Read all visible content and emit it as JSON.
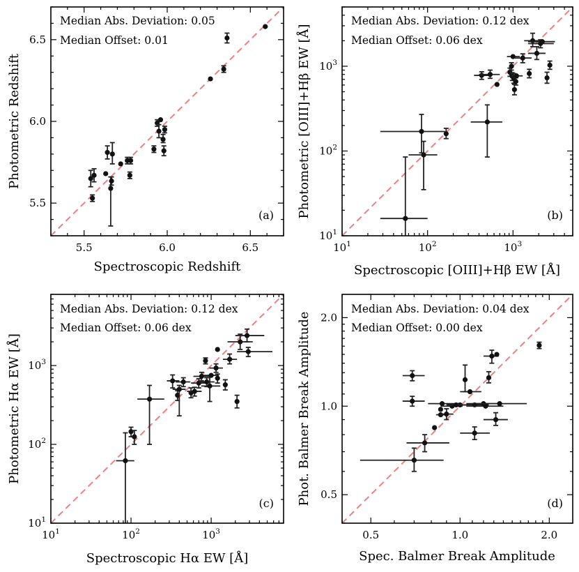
{
  "chart_data": [
    {
      "type": "scatter",
      "panel_label": "(a)",
      "xlabel": "Spectroscopic Redshift",
      "ylabel": "Photometric Redshift",
      "xscale": "linear",
      "yscale": "linear",
      "xlim": [
        5.3,
        6.7
      ],
      "ylim": [
        5.3,
        6.7
      ],
      "xticks": [
        5.5,
        6.0,
        6.5
      ],
      "xtick_labels": [
        "5.5",
        "6.0",
        "6.5"
      ],
      "yticks": [
        5.5,
        6.0,
        6.5
      ],
      "ytick_labels": [
        "5.5",
        "6.0",
        "6.5"
      ],
      "minor_ticks": [
        5.3,
        5.4,
        5.6,
        5.7,
        5.8,
        5.9,
        6.1,
        6.2,
        6.3,
        6.4,
        6.6,
        6.7
      ],
      "stats": [
        "Median Abs. Deviation: 0.05",
        "Median Offset: 0.01"
      ],
      "reference_line": "one-to-one dashed",
      "points": [
        {
          "x": 5.54,
          "y": 5.65,
          "ylo": 5.6,
          "yhi": 5.7
        },
        {
          "x": 5.55,
          "y": 5.53,
          "ylo": 5.51,
          "yhi": 5.55
        },
        {
          "x": 5.56,
          "y": 5.67,
          "ylo": 5.63,
          "yhi": 5.71
        },
        {
          "x": 5.63,
          "y": 5.68
        },
        {
          "x": 5.64,
          "y": 5.81,
          "ylo": 5.77,
          "yhi": 5.85
        },
        {
          "x": 5.66,
          "y": 5.59,
          "ylo": 5.36,
          "yhi": 5.66
        },
        {
          "x": 5.665,
          "y": 5.635,
          "ylo": 5.61,
          "yhi": 5.66
        },
        {
          "x": 5.67,
          "y": 5.8,
          "ylo": 5.74,
          "yhi": 5.87
        },
        {
          "x": 5.72,
          "y": 5.74
        },
        {
          "x": 5.76,
          "y": 5.76,
          "ylo": 5.74,
          "yhi": 5.78
        },
        {
          "x": 5.775,
          "y": 5.67,
          "ylo": 5.65,
          "yhi": 5.69
        },
        {
          "x": 5.78,
          "y": 5.76,
          "ylo": 5.74,
          "yhi": 5.78
        },
        {
          "x": 5.92,
          "y": 5.83,
          "ylo": 5.81,
          "yhi": 5.85
        },
        {
          "x": 5.94,
          "y": 5.99,
          "ylo": 5.97,
          "yhi": 6.01
        },
        {
          "x": 5.95,
          "y": 5.94,
          "ylo": 5.9,
          "yhi": 5.98
        },
        {
          "x": 5.96,
          "y": 6.01
        },
        {
          "x": 5.975,
          "y": 5.89,
          "ylo": 5.87,
          "yhi": 5.92
        },
        {
          "x": 5.98,
          "y": 5.82,
          "ylo": 5.79,
          "yhi": 5.85
        },
        {
          "x": 5.985,
          "y": 5.95,
          "ylo": 5.93,
          "yhi": 5.97
        },
        {
          "x": 6.26,
          "y": 6.26
        },
        {
          "x": 6.34,
          "y": 6.32,
          "ylo": 6.3,
          "yhi": 6.34
        },
        {
          "x": 6.36,
          "y": 6.51,
          "ylo": 6.48,
          "yhi": 6.54
        },
        {
          "x": 6.59,
          "y": 6.58
        }
      ]
    },
    {
      "type": "scatter",
      "panel_label": "(b)",
      "xlabel": "Spectroscopic [OIII]+Hβ EW [Å]",
      "ylabel": "Photometric [OIII]+Hβ EW [Å]",
      "xscale": "log",
      "yscale": "log",
      "xlim": [
        10,
        5000
      ],
      "ylim": [
        10,
        5000
      ],
      "xticks": [
        10,
        100,
        1000
      ],
      "xtick_labels": [
        [
          "10",
          "1"
        ],
        [
          "10",
          "2"
        ],
        [
          "10",
          "3"
        ]
      ],
      "yticks": [
        10,
        100,
        1000
      ],
      "ytick_labels": [
        [
          "10",
          "1"
        ],
        [
          "10",
          "2"
        ],
        [
          "10",
          "3"
        ]
      ],
      "stats": [
        "Median Abs. Deviation: 0.12 dex",
        "Median Offset: 0.06 dex"
      ],
      "reference_line": "one-to-one dashed",
      "points": [
        {
          "x": 55,
          "y": 16,
          "xlo": 28,
          "xhi": 100,
          "ylo": 3,
          "yhi": 85
        },
        {
          "x": 85,
          "y": 170,
          "xlo": 28,
          "xhi": 160,
          "ylo": 95,
          "yhi": 270
        },
        {
          "x": 90,
          "y": 90,
          "xlo": 60,
          "xhi": 130,
          "ylo": 35,
          "yhi": 130
        },
        {
          "x": 165,
          "y": 160,
          "ylo": 140,
          "yhi": 185
        },
        {
          "x": 500,
          "y": 220,
          "xlo": 320,
          "xhi": 750,
          "ylo": 85,
          "yhi": 350
        },
        {
          "x": 430,
          "y": 780,
          "xlo": 350,
          "xhi": 540,
          "ylo": 700,
          "yhi": 860
        },
        {
          "x": 540,
          "y": 800,
          "xlo": 400,
          "xhi": 700,
          "ylo": 720,
          "yhi": 900
        },
        {
          "x": 650,
          "y": 610
        },
        {
          "x": 920,
          "y": 850,
          "ylo": 760,
          "yhi": 950
        },
        {
          "x": 960,
          "y": 1000,
          "ylo": 900,
          "yhi": 1100
        },
        {
          "x": 980,
          "y": 760,
          "ylo": 680,
          "yhi": 840
        },
        {
          "x": 1000,
          "y": 1300,
          "xlo": 850,
          "xhi": 1200
        },
        {
          "x": 1020,
          "y": 720,
          "ylo": 630,
          "yhi": 820
        },
        {
          "x": 1040,
          "y": 530,
          "ylo": 460,
          "yhi": 610
        },
        {
          "x": 1080,
          "y": 660,
          "ylo": 600,
          "yhi": 730
        },
        {
          "x": 1100,
          "y": 770,
          "xlo": 950,
          "xhi": 1300
        },
        {
          "x": 1300,
          "y": 1250,
          "xlo": 1050,
          "xhi": 1650,
          "ylo": 1100,
          "yhi": 1400
        },
        {
          "x": 1550,
          "y": 820,
          "ylo": 730,
          "yhi": 920
        },
        {
          "x": 1700,
          "y": 2000,
          "xlo": 1350,
          "xhi": 2100,
          "ylo": 1700,
          "yhi": 2450
        },
        {
          "x": 1900,
          "y": 1420,
          "xlo": 1500,
          "xhi": 2400,
          "ylo": 1200,
          "yhi": 1700
        },
        {
          "x": 2100,
          "y": 1850,
          "xlo": 1500,
          "xhi": 3000,
          "ylo": 1650,
          "yhi": 2050
        },
        {
          "x": 2200,
          "y": 1950,
          "xlo": 1500,
          "xhi": 3100
        },
        {
          "x": 2500,
          "y": 730,
          "ylo": 630,
          "yhi": 850
        },
        {
          "x": 2700,
          "y": 1030,
          "ylo": 920,
          "yhi": 1150
        }
      ]
    },
    {
      "type": "scatter",
      "panel_label": "(c)",
      "xlabel": "Spectroscopic Hα EW [Å]",
      "ylabel": "Photometric Hα EW [Å]",
      "xscale": "log",
      "yscale": "log",
      "xlim": [
        10,
        8000
      ],
      "ylim": [
        10,
        8000
      ],
      "xticks": [
        10,
        100,
        1000
      ],
      "xtick_labels": [
        [
          "10",
          "1"
        ],
        [
          "10",
          "2"
        ],
        [
          "10",
          "3"
        ]
      ],
      "yticks": [
        10,
        100,
        1000
      ],
      "ytick_labels": [
        [
          "10",
          "1"
        ],
        [
          "10",
          "2"
        ],
        [
          "10",
          "3"
        ]
      ],
      "stats": [
        "Median Abs. Deviation: 0.12 dex",
        "Median Offset: 0.06 dex"
      ],
      "reference_line": "one-to-one dashed",
      "points": [
        {
          "x": 85,
          "y": 62,
          "xlo": 65,
          "xhi": 110,
          "ylo": 8,
          "yhi": 140
        },
        {
          "x": 100,
          "y": 145,
          "ylo": 125,
          "yhi": 165
        },
        {
          "x": 110,
          "y": 125,
          "ylo": 100,
          "yhi": 150
        },
        {
          "x": 170,
          "y": 375,
          "xlo": 120,
          "xhi": 260,
          "ylo": 100,
          "yhi": 560
        },
        {
          "x": 330,
          "y": 640,
          "xlo": 280,
          "xhi": 400,
          "ylo": 520,
          "yhi": 760
        },
        {
          "x": 380,
          "y": 420,
          "ylo": 360,
          "yhi": 480
        },
        {
          "x": 400,
          "y": 500,
          "xlo": 330,
          "xhi": 480,
          "ylo": 230,
          "yhi": 560
        },
        {
          "x": 450,
          "y": 620,
          "xlo": 360,
          "xhi": 550,
          "ylo": 540,
          "yhi": 700
        },
        {
          "x": 560,
          "y": 450,
          "ylo": 390,
          "yhi": 520
        },
        {
          "x": 620,
          "y": 470,
          "xlo": 500,
          "xhi": 760,
          "ylo": 410,
          "yhi": 530
        },
        {
          "x": 700,
          "y": 600,
          "xlo": 560,
          "xhi": 880,
          "ylo": 520,
          "yhi": 680
        },
        {
          "x": 760,
          "y": 730,
          "xlo": 600,
          "xhi": 950,
          "ylo": 640,
          "yhi": 820
        },
        {
          "x": 850,
          "y": 1150,
          "ylo": 1050,
          "yhi": 1250
        },
        {
          "x": 880,
          "y": 620,
          "xlo": 700,
          "xhi": 1100,
          "ylo": 540,
          "yhi": 700
        },
        {
          "x": 960,
          "y": 550,
          "xlo": 750,
          "xhi": 1300,
          "ylo": 350,
          "yhi": 750
        },
        {
          "x": 1000,
          "y": 750,
          "xlo": 800,
          "xhi": 1250
        },
        {
          "x": 1150,
          "y": 930,
          "xlo": 950,
          "xhi": 1400,
          "ylo": 820,
          "yhi": 1050
        },
        {
          "x": 1200,
          "y": 1600
        },
        {
          "x": 1200,
          "y": 690,
          "ylo": 600,
          "yhi": 780
        },
        {
          "x": 1500,
          "y": 570,
          "ylo": 490,
          "yhi": 660
        },
        {
          "x": 1700,
          "y": 1200,
          "xlo": 1400,
          "xhi": 2100,
          "ylo": 1050,
          "yhi": 1400
        },
        {
          "x": 2100,
          "y": 350,
          "ylo": 290,
          "yhi": 420
        },
        {
          "x": 2300,
          "y": 2000,
          "xlo": 1600,
          "xhi": 3300,
          "ylo": 1600,
          "yhi": 2500
        },
        {
          "x": 2800,
          "y": 2400,
          "xlo": 2000,
          "xhi": 4600,
          "ylo": 2000,
          "yhi": 2900
        },
        {
          "x": 2900,
          "y": 1500,
          "xlo": 2100,
          "xhi": 5800,
          "ylo": 1300,
          "yhi": 1700
        }
      ]
    },
    {
      "type": "scatter",
      "panel_label": "(d)",
      "xlabel": "Spec. Balmer Break Amplitude",
      "ylabel": "Phot. Balmer Break Amplitude",
      "xscale": "log",
      "yscale": "log",
      "xlim": [
        0.4,
        2.4
      ],
      "ylim": [
        0.4,
        2.4
      ],
      "xticks": [
        0.5,
        1.0,
        2.0
      ],
      "xtick_labels": [
        "0.5",
        "1.0",
        "2.0"
      ],
      "yticks": [
        0.5,
        1.0,
        2.0
      ],
      "ytick_labels": [
        "0.5",
        "1.0",
        "2.0"
      ],
      "minor_ticks": [
        0.4,
        0.6,
        0.7,
        0.8,
        0.9,
        1.1,
        1.2,
        1.3,
        1.4,
        1.5,
        1.6,
        1.7,
        1.8,
        1.9
      ],
      "stats": [
        "Median Abs. Deviation: 0.04 dex",
        "Median Offset: 0.00 dex"
      ],
      "reference_line": "one-to-one dashed",
      "points": [
        {
          "x": 0.7,
          "y": 0.655,
          "xlo": 0.46,
          "xhi": 0.88,
          "ylo": 0.6,
          "yhi": 0.72
        },
        {
          "x": 0.76,
          "y": 0.75,
          "xlo": 0.66,
          "xhi": 0.92,
          "ylo": 0.7,
          "yhi": 0.8
        },
        {
          "x": 0.69,
          "y": 1.27,
          "xlo": 0.64,
          "xhi": 0.76,
          "ylo": 1.22,
          "yhi": 1.32
        },
        {
          "x": 0.69,
          "y": 1.04,
          "xlo": 0.64,
          "xhi": 0.76,
          "ylo": 1.0,
          "yhi": 1.08
        },
        {
          "x": 0.82,
          "y": 0.845
        },
        {
          "x": 0.86,
          "y": 0.975
        },
        {
          "x": 0.86,
          "y": 0.935,
          "xlo": 0.83,
          "xhi": 0.9
        },
        {
          "x": 0.87,
          "y": 1.02,
          "xlo": 0.78,
          "xhi": 1.0
        },
        {
          "x": 0.9,
          "y": 0.94,
          "xlo": 0.86,
          "xhi": 0.95,
          "ylo": 0.9,
          "yhi": 0.98
        },
        {
          "x": 0.94,
          "y": 1.0,
          "xlo": 0.86,
          "xhi": 1.02
        },
        {
          "x": 0.97,
          "y": 1.01,
          "xlo": 0.9,
          "xhi": 1.05
        },
        {
          "x": 1.0,
          "y": 1.01
        },
        {
          "x": 1.04,
          "y": 1.23,
          "ylo": 1.12,
          "yhi": 1.38
        },
        {
          "x": 1.08,
          "y": 1.12,
          "xlo": 1.0,
          "xhi": 1.18
        },
        {
          "x": 1.12,
          "y": 1.01,
          "xlo": 0.98,
          "xhi": 1.25
        },
        {
          "x": 1.12,
          "y": 0.81,
          "xlo": 1.0,
          "xhi": 1.26,
          "ylo": 0.77,
          "yhi": 0.85
        },
        {
          "x": 1.2,
          "y": 1.02,
          "xlo": 1.05,
          "xhi": 1.35
        },
        {
          "x": 1.22,
          "y": 1.0,
          "xlo": 1.05,
          "xhi": 1.4
        },
        {
          "x": 1.25,
          "y": 1.25,
          "ylo": 1.2,
          "yhi": 1.31
        },
        {
          "x": 1.28,
          "y": 1.48,
          "xlo": 1.2,
          "xhi": 1.35,
          "ylo": 1.4,
          "yhi": 1.55
        },
        {
          "x": 1.32,
          "y": 0.9,
          "xlo": 1.2,
          "xhi": 1.45,
          "ylo": 0.86,
          "yhi": 0.95
        },
        {
          "x": 1.33,
          "y": 1.5
        },
        {
          "x": 1.36,
          "y": 1.02,
          "xlo": 1.1,
          "xhi": 1.68
        },
        {
          "x": 1.85,
          "y": 1.61,
          "ylo": 1.57,
          "yhi": 1.65
        }
      ]
    }
  ]
}
